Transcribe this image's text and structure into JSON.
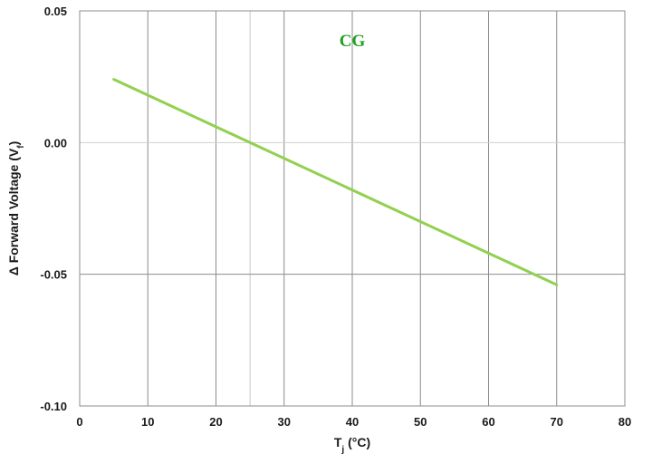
{
  "chart_data": {
    "type": "line",
    "title": "",
    "xlabel": "T",
    "xlabel_sub": "j",
    "xlabel_suffix": " (°C)",
    "ylabel": "Δ Forward Voltage (V",
    "ylabel_sub": "f",
    "ylabel_suffix": ")",
    "xlim": [
      0,
      80
    ],
    "ylim": [
      -0.1,
      0.05
    ],
    "x_ticks": [
      "0",
      "10",
      "20",
      "30",
      "40",
      "50",
      "60",
      "70",
      "80"
    ],
    "y_ticks": [
      "0.05",
      "0.00",
      "-0.05",
      "-0.10"
    ],
    "x_tick_values": [
      0,
      10,
      20,
      30,
      40,
      50,
      60,
      70,
      80
    ],
    "y_tick_values": [
      0.05,
      0.0,
      -0.05,
      -0.1
    ],
    "grid": true,
    "series": [
      {
        "name": "CG",
        "color": "#92d050",
        "x": [
          5,
          70
        ],
        "y": [
          0.024,
          -0.054
        ]
      }
    ],
    "annotations": [
      {
        "text": "CG",
        "x": 40,
        "y": 0.039,
        "color": "#1fa01f"
      }
    ]
  }
}
